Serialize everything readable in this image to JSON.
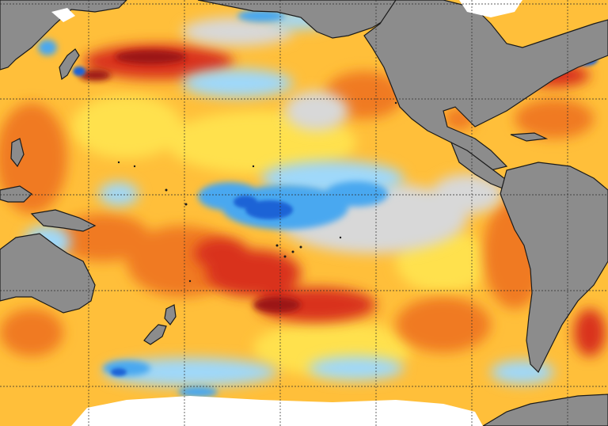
{
  "map": {
    "type": "sea-surface-temperature-anomaly",
    "projection": "equirectangular",
    "region": "Pacific Ocean",
    "colors": {
      "land": "#8c8c8c",
      "ice": "#ffffff",
      "strong-cool": "#1f63d6",
      "cool": "#4aa8f0",
      "light-cool": "#9fd8fa",
      "neutral": "#d8d8d8",
      "light-warm": "#ffe14d",
      "warm": "#ffbf3a",
      "strong-warm": "#f07a22",
      "very-warm": "#d9321a",
      "extreme-warm": "#9c1414",
      "gridline": "#2b2b2b"
    },
    "features": [
      "north-pacific-cool-band",
      "equatorial-cool-tongue",
      "kuroshio-warm-band",
      "south-pacific-warm-diagonal",
      "antarctic-sea-ice",
      "graticule"
    ],
    "gridlines": true
  }
}
